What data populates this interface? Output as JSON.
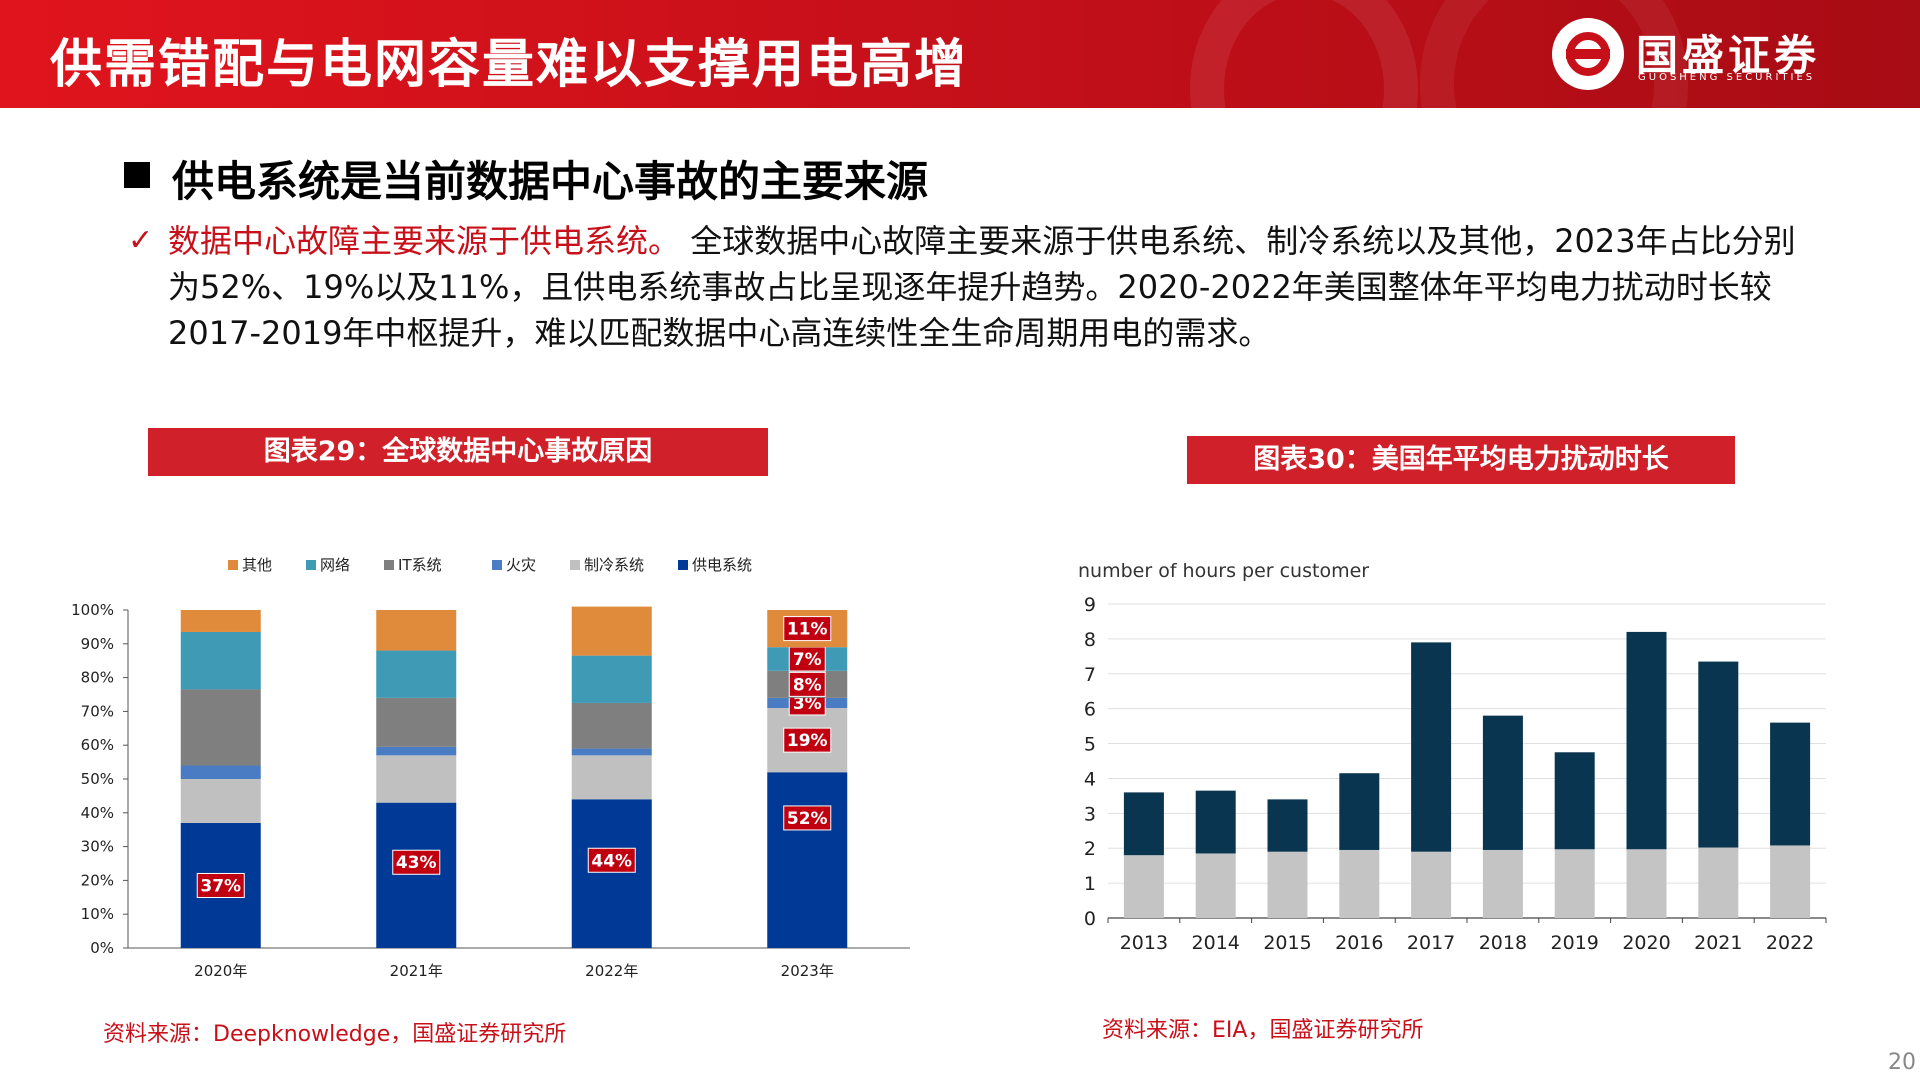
{
  "header": {
    "title": "供需错配与电网容量难以支撑用电高增",
    "logo_name": "国盛证券",
    "logo_sub": "GUOSHENG SECURITIES"
  },
  "section": {
    "heading": "供电系统是当前数据中心事故的主要来源"
  },
  "bullet": {
    "highlight": "数据中心故障主要来源于供电系统。",
    "text": " 全球数据中心故障主要来源于供电系统、制冷系统以及其他，2023年占比分别为52%、19%以及11%，且供电系统事故占比呈现逐年提升趋势。2020-2022年美国整体年平均电力扰动时长较2017-2019年中枢提升，难以匹配数据中心高连续性全生命周期用电的需求。"
  },
  "chart1": {
    "header": "图表29：全球数据中心事故原因",
    "source": "资料来源：Deepknowledge，国盛证券研究所"
  },
  "chart2": {
    "header": "图表30：美国年平均电力扰动时长",
    "source": "资料来源：EIA，国盛证券研究所"
  },
  "page_number": "20",
  "colors": {
    "brand_red": "#c8101a",
    "power": "#003a96",
    "cooling": "#c0c0c0",
    "fire": "#4a7cc4",
    "it": "#7f7f7f",
    "network": "#3f9bb5",
    "other": "#e08a3c",
    "navy": "#0a3550",
    "gray_bar": "#c4c4c4"
  },
  "chart_data": [
    {
      "type": "bar",
      "stacked": true,
      "percent": true,
      "categories": [
        "2020年",
        "2021年",
        "2022年",
        "2023年"
      ],
      "yticks": [
        "0%",
        "10%",
        "20%",
        "30%",
        "40%",
        "50%",
        "60%",
        "70%",
        "80%",
        "90%",
        "100%"
      ],
      "ylim": [
        0,
        100
      ],
      "legend": [
        "其他",
        "网络",
        "IT系统",
        "火灾",
        "制冷系统",
        "供电系统"
      ],
      "legend_position": "top",
      "series": [
        {
          "name": "供电系统",
          "values": [
            37,
            43,
            44,
            52
          ],
          "labels": [
            "37%",
            "43%",
            "44%",
            "52%"
          ]
        },
        {
          "name": "制冷系统",
          "values": [
            13,
            14,
            13,
            19
          ],
          "labels": [
            "",
            "",
            "",
            "19%"
          ]
        },
        {
          "name": "火灾",
          "values": [
            4,
            2.5,
            2,
            3
          ],
          "labels": [
            "",
            "",
            "",
            "3%"
          ]
        },
        {
          "name": "IT系统",
          "values": [
            22.5,
            14.5,
            13.5,
            8
          ],
          "labels": [
            "",
            "",
            "",
            "8%"
          ]
        },
        {
          "name": "网络",
          "values": [
            17,
            14,
            14,
            7
          ],
          "labels": [
            "",
            "",
            "",
            "7%"
          ]
        },
        {
          "name": "其他",
          "values": [
            6.5,
            12,
            14.5,
            11
          ],
          "labels": [
            "",
            "",
            "",
            "11%"
          ]
        }
      ]
    },
    {
      "type": "bar",
      "stacked": true,
      "title": "number of hours per customer",
      "categories": [
        "2013",
        "2014",
        "2015",
        "2016",
        "2017",
        "2018",
        "2019",
        "2020",
        "2021",
        "2022"
      ],
      "yticks": [
        "0",
        "1",
        "2",
        "3",
        "4",
        "5",
        "6",
        "7",
        "8",
        "9"
      ],
      "ylim": [
        0,
        9
      ],
      "grid": true,
      "series": [
        {
          "values": [
            1.8,
            1.85,
            1.9,
            1.95,
            1.9,
            1.95,
            1.97,
            1.97,
            2.02,
            2.08
          ]
        },
        {
          "values": [
            1.8,
            1.8,
            1.5,
            2.2,
            6.0,
            3.85,
            2.78,
            6.23,
            5.33,
            3.52
          ]
        }
      ]
    }
  ]
}
